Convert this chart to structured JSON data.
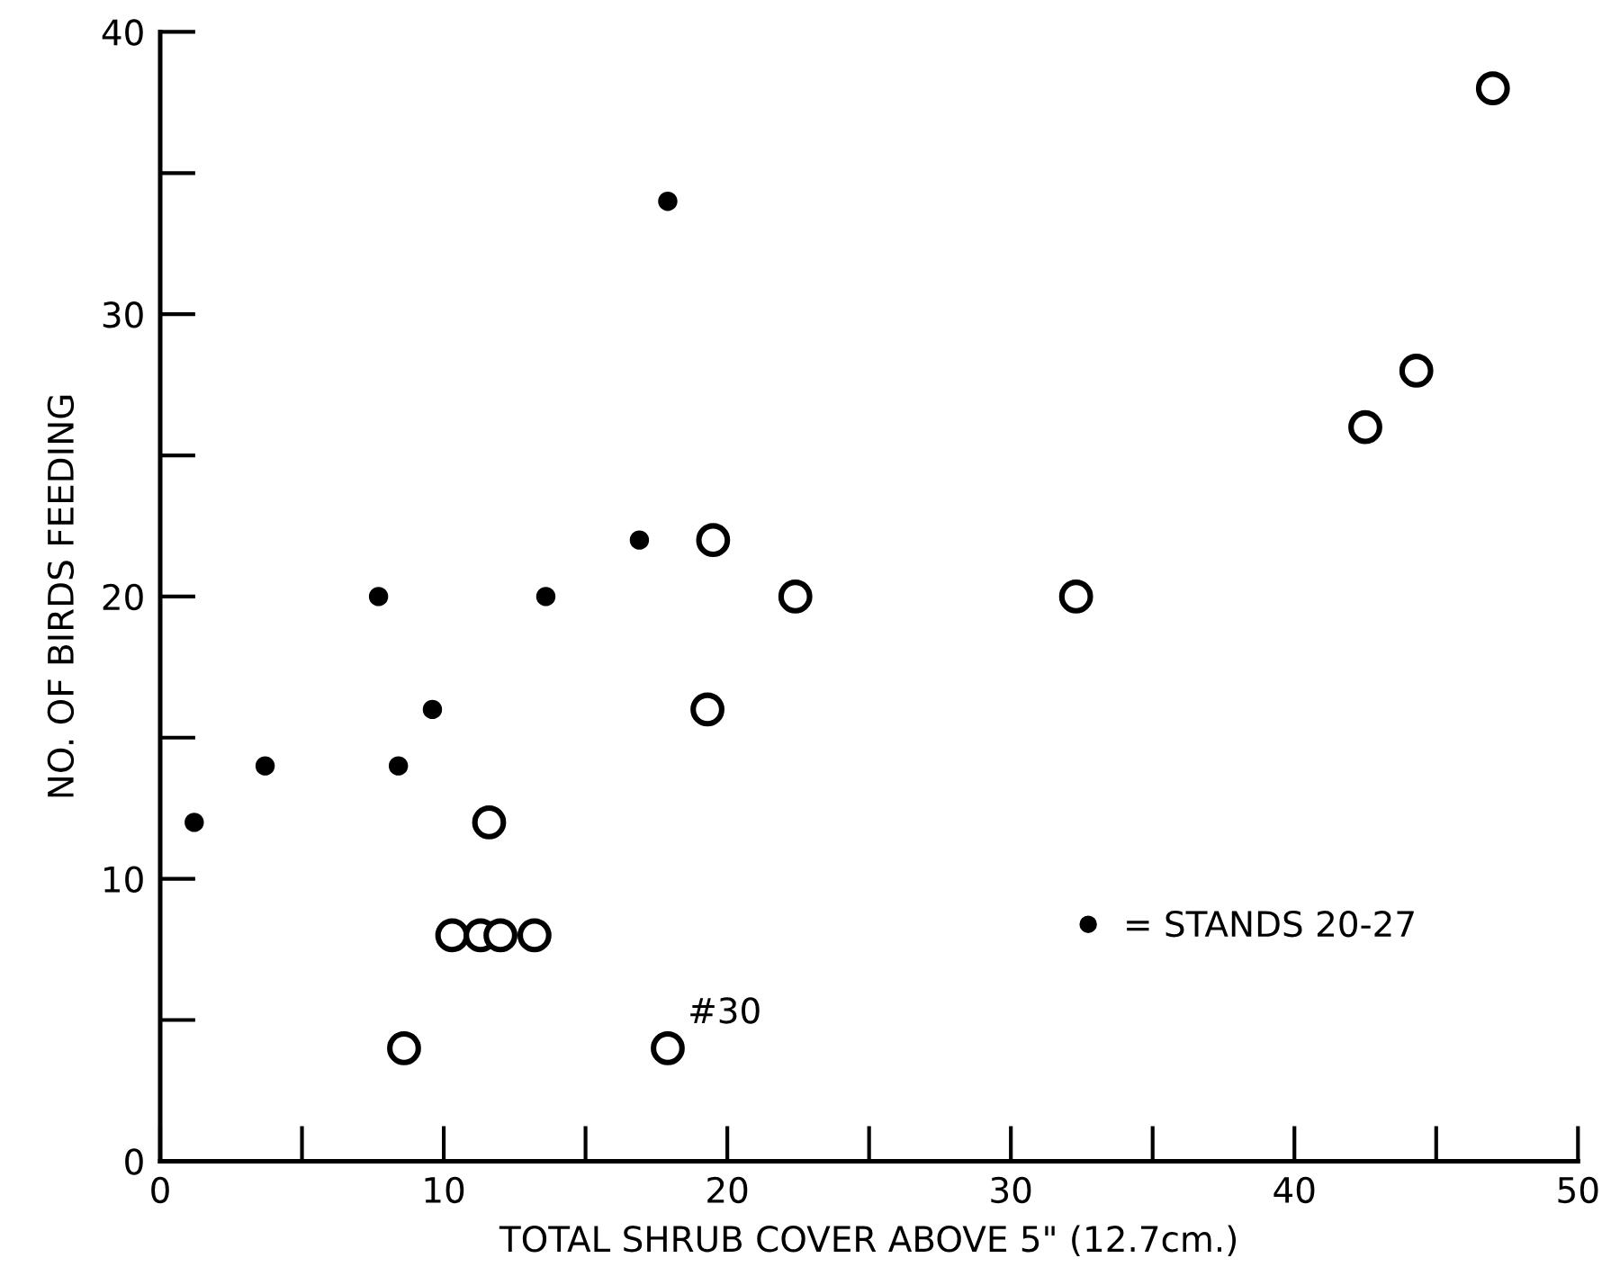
{
  "chart_data": {
    "type": "scatter",
    "xlabel": "TOTAL SHRUB COVER ABOVE 5\" (12.7cm.)",
    "ylabel": "NO. OF BIRDS FEEDING",
    "xlim": [
      0,
      50
    ],
    "ylim": [
      0,
      40
    ],
    "xticks": [
      0,
      10,
      20,
      30,
      40,
      50
    ],
    "yticks": [
      0,
      10,
      20,
      30,
      40
    ],
    "grid": false,
    "legend": "right",
    "marker": "circle",
    "series": [
      {
        "name": "= STANDS 20-27",
        "color": "#000000",
        "x": [
          1.2,
          3.7,
          7.7,
          8.4,
          9.6,
          13.6,
          16.9,
          17.9
        ],
        "values": [
          12,
          14,
          20,
          14,
          16,
          20,
          22,
          34
        ]
      },
      {
        "color": "#000000",
        "x": [
          8.6,
          10.3,
          11.3,
          11.6,
          12.0,
          13.2,
          17.9,
          19.3,
          19.5,
          22.4,
          32.3,
          42.5,
          44.3,
          47.0
        ],
        "values": [
          4,
          8,
          8,
          12,
          8,
          8,
          4,
          16,
          22,
          20,
          20,
          26,
          28,
          38
        ]
      }
    ],
    "annotations": [
      {
        "text": "#30",
        "x": 17.9,
        "y": 4
      }
    ]
  }
}
